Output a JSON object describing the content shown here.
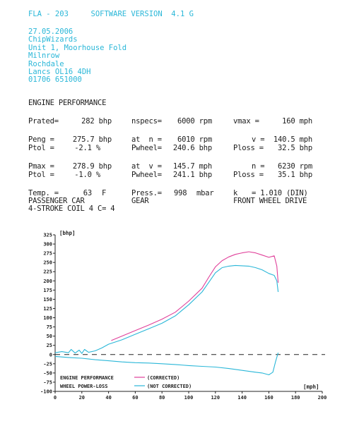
{
  "header": {
    "model": "FLA - 203",
    "software": "SOFTWARE VERSION  4.1 G"
  },
  "address": [
    "27.05.2006",
    "ChipWizards",
    "Unit 1, Moorhouse Fold",
    "Milnrow",
    "Rochdale",
    "Lancs OL16 4DH",
    "01706 651000"
  ],
  "section_title": "ENGINE PERFORMANCE",
  "rated": {
    "prated_label": "Prated=",
    "prated_value": "282 bhp",
    "nspecs_label": "nspecs=",
    "nspecs_value": "6000 rpm",
    "vmax_label": "vmax =",
    "vmax_value": "160 mph"
  },
  "peng": {
    "peng_label": "Peng =",
    "peng_value": "275.7 bhp",
    "ptol_label": "Ptol =",
    "ptol_value": "-2.1 %",
    "at_n_label": "at  n =",
    "at_n_value": "6010 rpm",
    "pwheel_label": "Pwheel=",
    "pwheel_value": "240.6 bhp",
    "v_label": "v =",
    "v_value": "140.5 mph",
    "ploss_label": "Ploss =",
    "ploss_value": "32.5 bhp"
  },
  "pmax": {
    "pmax_label": "Pmax =",
    "pmax_value": "278.9 bhp",
    "ptol_label": "Ptol =",
    "ptol_value": "-1.0 %",
    "at_v_label": "at  v =",
    "at_v_value": "145.7 mph",
    "pwheel_label": "Pwheel=",
    "pwheel_value": "241.1 bhp",
    "n_label": "n =",
    "n_value": "6230 rpm",
    "ploss_label": "Ploss =",
    "ploss_value": "35.1 bhp"
  },
  "conditions": {
    "temp_label": "Temp. =",
    "temp_value": "63",
    "temp_unit": "F",
    "press_label": "Press.=",
    "press_value": "998",
    "press_unit": "mbar",
    "k_label": "k",
    "k_value": "= 1.010 (DIN)",
    "vehicle": "PASSENGER CAR",
    "gear": "GEAR",
    "drive": "FRONT WHEEL DRIVE",
    "engine": "4-STROKE COIL 4 C= 4"
  },
  "chart_data": {
    "type": "line",
    "ylabel": "[bhp]",
    "xlabel": "[mph]",
    "xlim": [
      0,
      200
    ],
    "ylim": [
      -100,
      325
    ],
    "x_ticks": [
      0,
      20,
      40,
      60,
      80,
      100,
      120,
      140,
      160,
      180,
      200
    ],
    "y_ticks": [
      325,
      300,
      275,
      250,
      225,
      200,
      175,
      150,
      125,
      100,
      75,
      50,
      25,
      0,
      -25,
      -50,
      -75,
      -100
    ],
    "legend": {
      "title1": "ENGINE PERFORMANCE",
      "title2": "WHEEL POWER-LOSS",
      "corrected": "(CORRECTED)",
      "not_corrected": "(NOT CORRECTED)"
    },
    "colors": {
      "corrected": "#e0409a",
      "not_corrected": "#2ab7d8",
      "axis": "#222222"
    },
    "series": [
      {
        "name": "(CORRECTED)",
        "color": "#e0409a",
        "x": [
          42,
          50,
          60,
          70,
          80,
          90,
          100,
          110,
          115,
          120,
          125,
          130,
          135,
          140,
          145,
          150,
          155,
          160,
          164,
          166,
          167
        ],
        "y": [
          38,
          50,
          65,
          80,
          96,
          115,
          145,
          180,
          210,
          238,
          255,
          265,
          272,
          276,
          279,
          276,
          270,
          264,
          268,
          240,
          195
        ]
      },
      {
        "name": "(NOT CORRECTED)",
        "color": "#2ab7d8",
        "x": [
          0,
          5,
          10,
          12,
          15,
          18,
          20,
          22,
          25,
          30,
          35,
          40,
          50,
          60,
          70,
          80,
          90,
          100,
          110,
          115,
          120,
          125,
          130,
          135,
          140,
          145,
          150,
          155,
          160,
          164,
          166,
          167
        ],
        "y": [
          5,
          8,
          5,
          14,
          4,
          12,
          3,
          14,
          6,
          10,
          18,
          28,
          40,
          55,
          70,
          85,
          105,
          135,
          170,
          196,
          222,
          236,
          240,
          242,
          241,
          240,
          236,
          230,
          220,
          215,
          200,
          170
        ]
      },
      {
        "name": "power-loss",
        "color": "#2ab7d8",
        "x": [
          0,
          10,
          20,
          30,
          40,
          50,
          60,
          70,
          80,
          90,
          100,
          110,
          120,
          130,
          140,
          150,
          155,
          160,
          163,
          165,
          167
        ],
        "y": [
          -5,
          -8,
          -10,
          -14,
          -17,
          -20,
          -22,
          -23,
          -25,
          -27,
          -30,
          -32,
          -34,
          -38,
          -43,
          -48,
          -50,
          -55,
          -48,
          -20,
          5
        ]
      }
    ]
  }
}
